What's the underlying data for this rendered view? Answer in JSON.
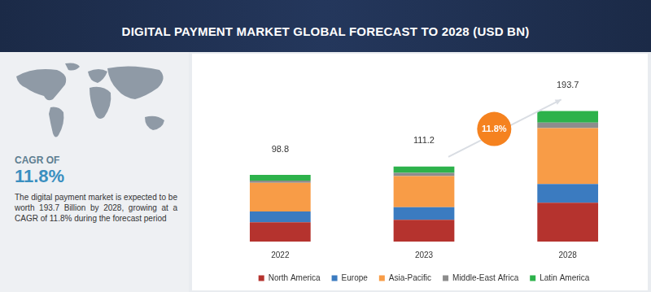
{
  "chart_data": {
    "type": "bar",
    "title": "DIGITAL PAYMENT MARKET GLOBAL FORECAST TO 2028 (USD BN)",
    "categories": [
      "2022",
      "2023",
      "2028"
    ],
    "series": [
      {
        "name": "North America",
        "color": "#b5332e",
        "values": [
          28.7,
          32.4,
          57.6
        ]
      },
      {
        "name": "Europe",
        "color": "#3b7bc0",
        "values": [
          16.0,
          18.5,
          27.7
        ]
      },
      {
        "name": "Asia-Pacific",
        "color": "#f89c47",
        "values": [
          42.5,
          46.3,
          83.0
        ]
      },
      {
        "name": "Middle-East Africa",
        "color": "#8d8d8d",
        "values": [
          3.4,
          4.6,
          8.1
        ]
      },
      {
        "name": "Latin America",
        "color": "#2db24b",
        "values": [
          8.2,
          9.4,
          17.3
        ]
      }
    ],
    "totals": [
      98.8,
      111.2,
      193.7
    ],
    "ylim": [
      0,
      240
    ],
    "stacked": true,
    "grid": false,
    "legend": "bottom",
    "tick_labels": "x",
    "annotations": {
      "cagr_label": "CAGR OF",
      "cagr_value": "11.8%",
      "description": "The digital payment market is expected to be worth 193.7 Billion by 2028, growing at a CAGR of 11.8% during the forecast period",
      "growth_badge": "11.8%"
    }
  }
}
